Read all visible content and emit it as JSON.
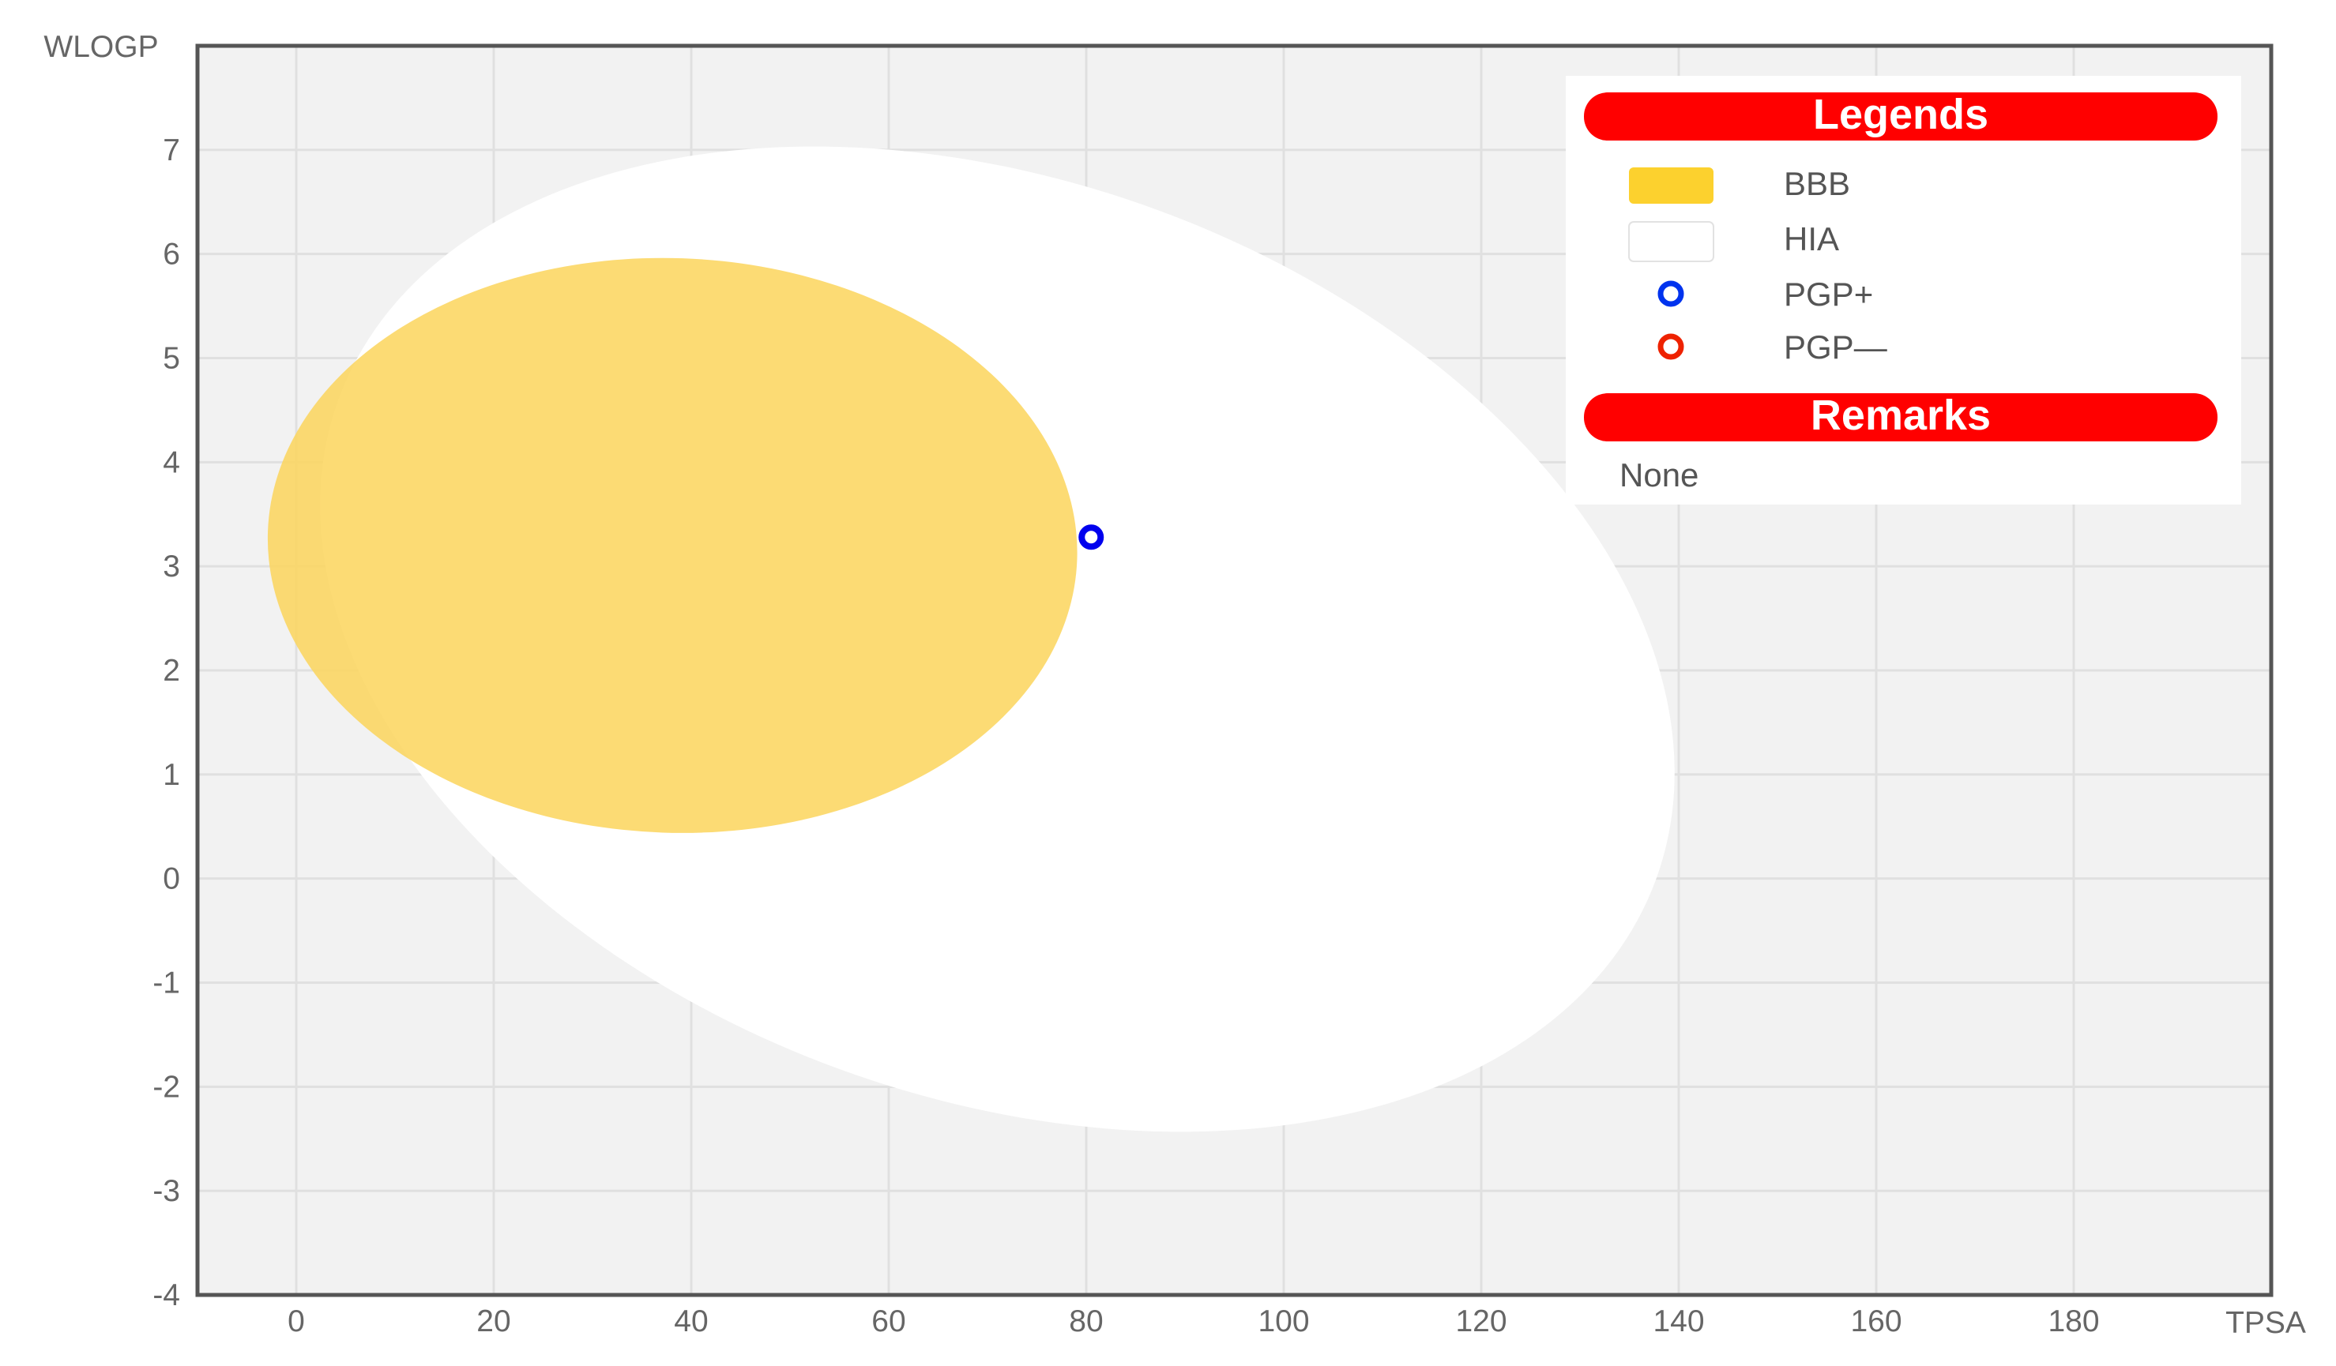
{
  "chart_data": {
    "type": "scatter",
    "title": "",
    "xlabel": "TPSA",
    "ylabel": "WLOGP",
    "xlim": [
      -10,
      200
    ],
    "ylim": [
      -4,
      8
    ],
    "x_ticks": [
      "0",
      "20",
      "40",
      "60",
      "80",
      "100",
      "120",
      "140",
      "160",
      "180"
    ],
    "y_ticks": [
      "-4",
      "-3",
      "-2",
      "-1",
      "0",
      "1",
      "2",
      "3",
      "4",
      "5",
      "6",
      "7"
    ],
    "grid": true,
    "regions": [
      {
        "name": "HIA",
        "shape": "ellipse",
        "cx": 71,
        "cy": 2.3,
        "rx": 71,
        "ry": 4.4,
        "rotation_deg": 20,
        "color": "#ffffff"
      },
      {
        "name": "BBB",
        "shape": "ellipse",
        "cx": 38.1,
        "cy": 3.2,
        "rx": 41,
        "ry": 2.76,
        "rotation_deg": 2,
        "color": "#fcd55c"
      }
    ],
    "series": [
      {
        "name": "PGP+",
        "color": "#0000ee",
        "points": [
          {
            "x": 80.5,
            "y": 3.28
          }
        ]
      }
    ],
    "legend_placement": "top-right"
  },
  "legend": {
    "title": "Legends",
    "items": [
      {
        "label": "BBB",
        "kind": "swatch",
        "color": "#fcd12e"
      },
      {
        "label": "HIA",
        "kind": "swatch",
        "color": "#ffffff"
      },
      {
        "label": "PGP+",
        "kind": "dot",
        "color": "#0033ee"
      },
      {
        "label": "PGP—",
        "kind": "dot",
        "color": "#ee2200"
      }
    ],
    "remarks_title": "Remarks",
    "remarks_text": "None",
    "header_color": "#ff0000"
  }
}
